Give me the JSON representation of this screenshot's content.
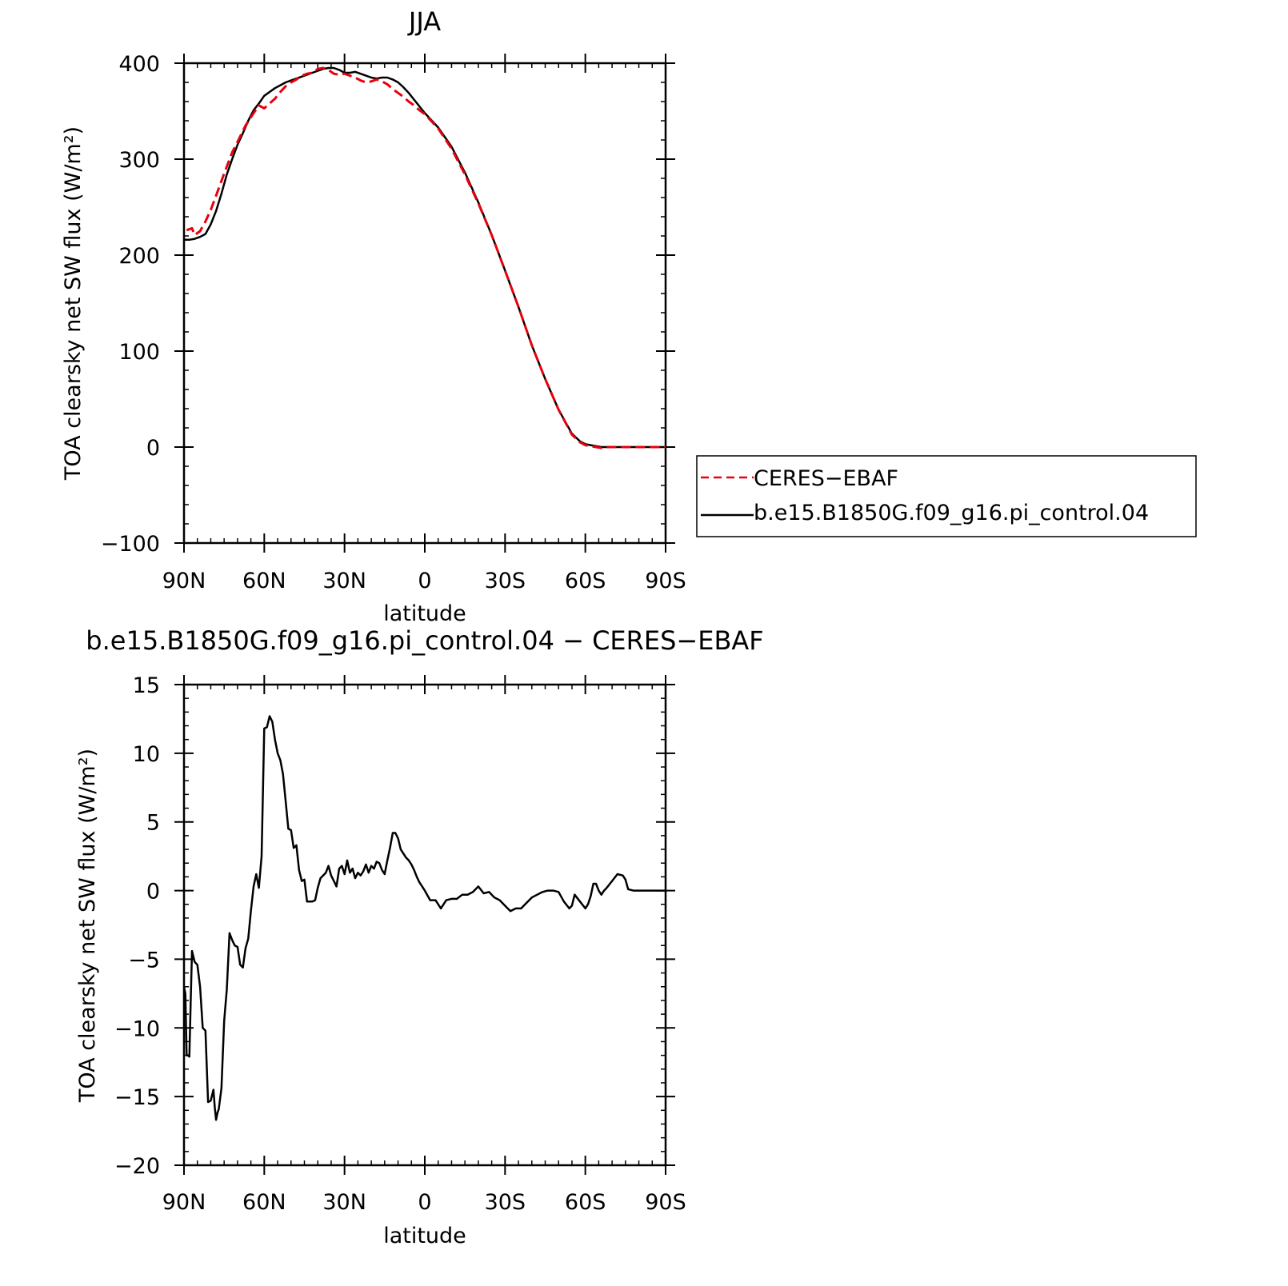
{
  "colors": {
    "model": "#000000",
    "obs": "#e8000b"
  },
  "chart_data": [
    {
      "type": "line",
      "title": "JJA",
      "xlabel": "latitude",
      "ylabel": "TOA clearsky net SW flux (W/m²)",
      "xlim": [
        90,
        -90
      ],
      "ylim": [
        -100,
        400
      ],
      "x_ticks": [
        90,
        60,
        30,
        0,
        -30,
        -60,
        -90
      ],
      "x_tick_labels": [
        "90N",
        "60N",
        "30N",
        "0",
        "30S",
        "60S",
        "90S"
      ],
      "y_ticks": [
        -100,
        0,
        100,
        200,
        300,
        400
      ],
      "y_tick_labels": [
        "−100",
        "0",
        "100",
        "200",
        "300",
        "400"
      ],
      "legend": {
        "position": "right",
        "entries": [
          "CERES−EBAF",
          "b.e15.B1850G.f09_g16.pi_control.04"
        ]
      },
      "series": [
        {
          "name": "CERES−EBAF",
          "style": "dashed",
          "color": "#e8000b",
          "x": [
            89,
            87,
            86,
            84,
            82,
            80,
            78,
            75,
            72,
            70,
            67,
            64,
            62,
            60,
            58,
            56,
            54,
            52,
            50,
            48,
            46,
            44,
            42,
            40,
            38,
            36,
            34,
            32,
            30,
            28,
            26,
            24,
            22,
            20,
            18,
            16,
            14,
            12,
            10,
            8,
            6,
            4,
            2,
            0,
            -5,
            -10,
            -15,
            -20,
            -25,
            -30,
            -35,
            -40,
            -45,
            -50,
            -55,
            -58,
            -60,
            -62,
            -64,
            -66,
            -68,
            -70,
            -72,
            -74,
            -76,
            -78,
            -80,
            -82,
            -84,
            -86,
            -88,
            -90
          ],
          "y": [
            226,
            228,
            221,
            225,
            235,
            247,
            262,
            285,
            307,
            318,
            335,
            348,
            356,
            353,
            358,
            363,
            370,
            376,
            380,
            383,
            387,
            389,
            390,
            394,
            395,
            393,
            389,
            388,
            389,
            387,
            385,
            382,
            380,
            381,
            383,
            381,
            378,
            373,
            369,
            365,
            360,
            356,
            351,
            347,
            332,
            311,
            284,
            254,
            221,
            184,
            146,
            106,
            71,
            39,
            13,
            5,
            2,
            1,
            0,
            -1,
            0,
            0,
            0,
            0,
            0,
            0,
            0,
            0,
            0,
            0,
            0,
            0
          ]
        },
        {
          "name": "b.e15.B1850G.f09_g16.pi_control.04",
          "style": "solid",
          "color": "#000000",
          "x": [
            90,
            88,
            86,
            84,
            82,
            80,
            78,
            76,
            74,
            72,
            70,
            68,
            66,
            64,
            62,
            60,
            58,
            56,
            54,
            52,
            50,
            48,
            46,
            44,
            42,
            40,
            38,
            36,
            34,
            32,
            30,
            28,
            26,
            24,
            22,
            20,
            18,
            16,
            14,
            12,
            10,
            8,
            6,
            4,
            2,
            0,
            -5,
            -10,
            -15,
            -20,
            -25,
            -30,
            -35,
            -40,
            -45,
            -50,
            -55,
            -58,
            -60,
            -62,
            -64,
            -66,
            -68,
            -70,
            -72,
            -74,
            -76,
            -78,
            -80,
            -82,
            -84,
            -86,
            -88,
            -90
          ],
          "y": [
            216,
            216,
            217,
            219,
            222,
            232,
            246,
            264,
            284,
            300,
            315,
            327,
            340,
            351,
            358,
            366,
            370,
            374,
            377,
            380,
            382,
            384,
            386,
            388,
            390,
            392,
            394,
            395,
            395,
            393,
            390,
            390,
            391,
            389,
            387,
            385,
            384,
            385,
            385,
            383,
            380,
            375,
            369,
            362,
            355,
            348,
            333,
            313,
            286,
            255,
            221,
            184,
            146,
            106,
            71,
            39,
            14,
            6,
            3,
            2,
            1,
            0,
            0,
            0,
            0,
            0,
            0,
            0,
            0,
            0,
            0,
            0,
            0,
            0
          ]
        }
      ]
    },
    {
      "type": "line",
      "title": "b.e15.B1850G.f09_g16.pi_control.04 − CERES−EBAF",
      "xlabel": "latitude",
      "ylabel": "TOA clearsky net SW flux (W/m²)",
      "xlim": [
        90,
        -90
      ],
      "ylim": [
        -20,
        15
      ],
      "x_ticks": [
        90,
        60,
        30,
        0,
        -30,
        -60,
        -90
      ],
      "x_tick_labels": [
        "90N",
        "60N",
        "30N",
        "0",
        "30S",
        "60S",
        "90S"
      ],
      "y_ticks": [
        -20,
        -15,
        -10,
        -5,
        0,
        5,
        10,
        15
      ],
      "y_tick_labels": [
        "−20",
        "−15",
        "−10",
        "−5",
        "0",
        "5",
        "10",
        "15"
      ],
      "series": [
        {
          "style": "solid",
          "color": "#000000",
          "x": [
            90,
            89.5,
            89,
            88.5,
            88,
            87.5,
            87,
            86,
            85.5,
            85,
            84,
            83,
            82,
            81,
            80,
            79,
            78.5,
            78,
            77.5,
            77,
            76,
            75,
            74,
            73,
            72,
            71,
            70,
            69,
            68,
            67,
            66,
            65,
            64,
            63,
            62,
            61,
            60,
            59,
            58,
            57,
            56,
            55,
            54,
            53,
            52,
            51,
            50,
            49,
            48,
            47,
            46,
            45,
            44,
            43,
            42,
            41,
            40,
            39,
            38,
            37,
            36,
            35,
            34,
            33,
            32,
            31,
            30,
            29,
            28,
            27,
            26,
            25,
            24,
            23,
            22,
            21,
            20,
            19,
            18,
            17,
            16,
            15,
            14,
            13,
            12,
            11,
            10,
            9,
            8,
            7,
            6,
            5,
            4,
            3,
            2,
            1,
            0,
            -2,
            -4,
            -6,
            -8,
            -10,
            -12,
            -14,
            -16,
            -18,
            -20,
            -22,
            -24,
            -26,
            -28,
            -30,
            -32,
            -34,
            -36,
            -38,
            -40,
            -42,
            -44,
            -46,
            -48,
            -50,
            -52,
            -54,
            -55,
            -56,
            -58,
            -60,
            -61,
            -62,
            -63,
            -64,
            -65,
            -66,
            -67,
            -68,
            -70,
            -72,
            -74,
            -75,
            -76,
            -78,
            -80,
            -82,
            -84,
            -86,
            -88,
            -90
          ],
          "y": [
            -7,
            -7.5,
            -12,
            -12,
            -12.1,
            -8,
            -4.4,
            -5.2,
            -5.3,
            -5.4,
            -7,
            -10,
            -10.2,
            -15.4,
            -15.3,
            -14.5,
            -15.8,
            -16.7,
            -16.2,
            -15.9,
            -14.4,
            -9.5,
            -7.2,
            -3.1,
            -3.6,
            -4,
            -4.1,
            -5.4,
            -5.6,
            -4.2,
            -3.5,
            -1.5,
            0.3,
            1.2,
            0.2,
            2.5,
            11.8,
            11.9,
            12.7,
            12.3,
            11,
            10,
            9.5,
            8.5,
            6.5,
            4.5,
            4.4,
            3.1,
            3.3,
            1.5,
            0.7,
            0.8,
            -0.8,
            -0.8,
            -0.8,
            -0.7,
            0.2,
            0.9,
            1.1,
            1.3,
            1.8,
            1.1,
            0.7,
            0.3,
            1.6,
            1.8,
            1.2,
            2.2,
            1.3,
            1.6,
            0.9,
            1.3,
            1.1,
            1.4,
            1.9,
            1.3,
            1.8,
            1.6,
            2.1,
            2.0,
            1.5,
            1.2,
            2.2,
            3.1,
            4.2,
            4.2,
            3.8,
            3.0,
            2.7,
            2.4,
            2.2,
            1.9,
            1.5,
            1.0,
            0.6,
            0.3,
            0.0,
            -0.7,
            -0.7,
            -1.3,
            -0.7,
            -0.6,
            -0.6,
            -0.3,
            -0.3,
            -0.1,
            0.3,
            -0.2,
            -0.1,
            -0.5,
            -0.7,
            -1.1,
            -1.5,
            -1.3,
            -1.3,
            -0.9,
            -0.5,
            -0.3,
            -0.1,
            0.0,
            0.0,
            -0.1,
            -0.8,
            -1.3,
            -1.1,
            -0.3,
            -0.8,
            -1.3,
            -1.0,
            -0.4,
            0.5,
            0.5,
            0.0,
            -0.3,
            0.0,
            0.2,
            0.7,
            1.2,
            1.1,
            0.8,
            0.1,
            0.0,
            0.0,
            0.0,
            0.0,
            0.0,
            0.0,
            0.0
          ]
        }
      ]
    }
  ]
}
